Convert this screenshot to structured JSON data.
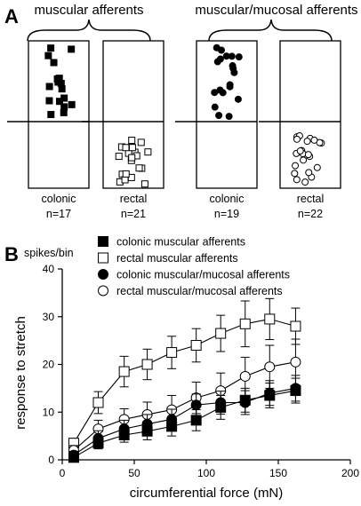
{
  "panel_a": {
    "letter": "A",
    "group_left_title": "muscular afferents",
    "group_right_title": "muscular/mucosal afferents",
    "boxes": [
      {
        "label": "colonic",
        "n": "n=17",
        "marker": "filled-square"
      },
      {
        "label": "rectal",
        "n": "n=21",
        "marker": "open-square"
      },
      {
        "label": "colonic",
        "n": "n=19",
        "marker": "filled-circle"
      },
      {
        "label": "rectal",
        "n": "n=22",
        "marker": "open-circle"
      }
    ]
  },
  "chart_data": {
    "type": "line",
    "panel_letter": "B",
    "title": "",
    "units_label": "spikes/bin",
    "xlabel": "circumferential force (mN)",
    "ylabel": "response to stretch",
    "xlim": [
      0,
      200
    ],
    "ylim": [
      0,
      40
    ],
    "xticks": [
      "0",
      "50",
      "100",
      "150",
      "200"
    ],
    "yticks": [
      "0",
      "10",
      "20",
      "30",
      "40"
    ],
    "grid": false,
    "legend_position": "top-left",
    "series": [
      {
        "name": "colonic muscular afferents",
        "marker": "filled-square",
        "x": [
          8,
          25,
          43,
          59,
          76,
          93,
          110,
          127,
          144,
          162
        ],
        "y": [
          0.5,
          3.5,
          5.2,
          6.0,
          7.0,
          8.3,
          11.0,
          12.5,
          13.5,
          14.5
        ],
        "err": [
          0.5,
          1.2,
          1.5,
          1.8,
          2.0,
          2.2,
          2.5,
          2.5,
          2.6,
          2.6
        ]
      },
      {
        "name": "rectal muscular afferents",
        "marker": "open-square",
        "x": [
          8,
          25,
          43,
          59,
          76,
          93,
          110,
          127,
          144,
          162
        ],
        "y": [
          3.5,
          12.0,
          18.5,
          20.0,
          22.5,
          24.0,
          26.5,
          28.5,
          29.5,
          28.0
        ],
        "err": [
          1.0,
          2.3,
          3.2,
          3.2,
          3.4,
          3.5,
          3.8,
          4.8,
          4.3,
          3.8
        ]
      },
      {
        "name": "colonic muscular/mucosal afferents",
        "marker": "filled-circle",
        "x": [
          8,
          25,
          43,
          59,
          76,
          93,
          110,
          127,
          144,
          162
        ],
        "y": [
          1.0,
          4.5,
          6.5,
          7.5,
          8.5,
          11.5,
          12.0,
          12.0,
          14.0,
          15.0
        ],
        "err": [
          0.8,
          1.6,
          1.8,
          2.0,
          2.1,
          2.3,
          2.4,
          2.5,
          2.6,
          2.7
        ]
      },
      {
        "name": "rectal muscular/mucosal afferents",
        "marker": "open-circle",
        "x": [
          8,
          25,
          43,
          59,
          76,
          93,
          110,
          127,
          144,
          162
        ],
        "y": [
          2.0,
          6.5,
          8.5,
          9.5,
          10.5,
          13.0,
          14.5,
          17.5,
          19.5,
          20.5
        ],
        "err": [
          1.0,
          1.8,
          2.2,
          2.6,
          3.0,
          3.3,
          3.7,
          4.0,
          4.5,
          4.8
        ]
      }
    ]
  }
}
